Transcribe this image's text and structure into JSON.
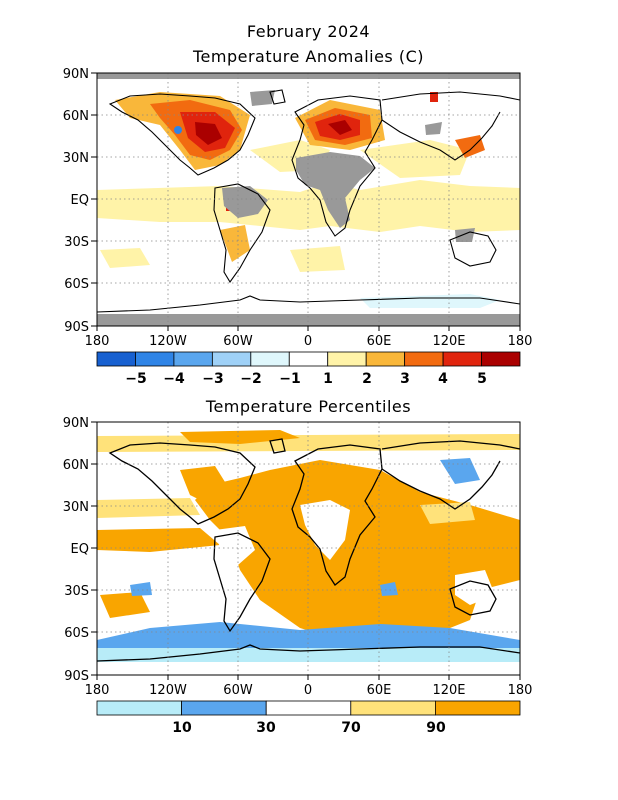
{
  "header": {
    "title": "February 2024",
    "subtitle": "Temperature Anomalies (C)"
  },
  "anomaly_map": {
    "lat_labels": [
      "90N",
      "60N",
      "30N",
      "EQ",
      "30S",
      "60S",
      "90S"
    ],
    "lon_labels": [
      "180",
      "120W",
      "60W",
      "0",
      "60E",
      "120E",
      "180"
    ],
    "colorbar": {
      "colors": [
        "#1760d0",
        "#2f84e6",
        "#5aa6ee",
        "#9fd1f7",
        "#dff7fc",
        "#ffffff",
        "#fff3a8",
        "#f9b73a",
        "#f26b10",
        "#e0240d",
        "#aa0000"
      ],
      "labels": [
        "−5",
        "−4",
        "−3",
        "−2",
        "−1",
        "1",
        "2",
        "3",
        "4",
        "5"
      ]
    }
  },
  "percentile_map": {
    "title": "Temperature Percentiles",
    "lat_labels": [
      "90N",
      "60N",
      "30N",
      "EQ",
      "30S",
      "60S",
      "90S"
    ],
    "lon_labels": [
      "180",
      "120W",
      "60W",
      "0",
      "60E",
      "120E",
      "180"
    ],
    "colorbar": {
      "colors": [
        "#b8ecf8",
        "#5aa6ee",
        "#ffffff",
        "#ffe27a",
        "#f9a500"
      ],
      "labels": [
        "10",
        "30",
        "70",
        "90"
      ]
    }
  }
}
